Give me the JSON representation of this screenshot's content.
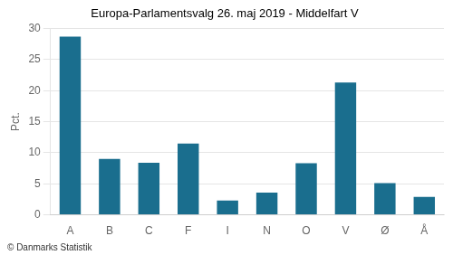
{
  "chart_data": {
    "type": "bar",
    "title": "Europa-Parlamentsvalg 26. maj 2019 - Middelfart V",
    "categories": [
      "A",
      "B",
      "C",
      "F",
      "I",
      "N",
      "O",
      "V",
      "Ø",
      "Å"
    ],
    "values": [
      28.7,
      9.0,
      8.4,
      11.5,
      2.3,
      3.6,
      8.3,
      21.3,
      5.1,
      2.9
    ],
    "color": "#1a6e8e",
    "ylabel": "Pct.",
    "ylim": [
      0,
      30
    ],
    "yticks": [
      0,
      5,
      10,
      15,
      20,
      25,
      30
    ],
    "grid": true,
    "annotations": [
      "© Danmarks Statistik"
    ]
  }
}
